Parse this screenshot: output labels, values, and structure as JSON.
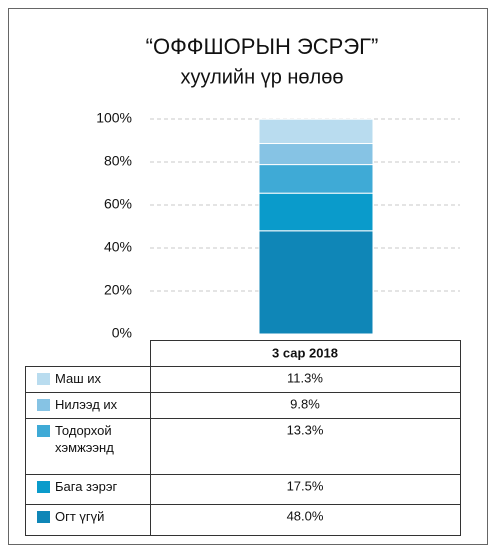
{
  "chart_data": {
    "type": "stacked_bar",
    "title": "“ОФФШОРЫН ЭСРЭГ”",
    "subtitle": "хуулийн үр нөлөө",
    "categories": [
      "3 сар 2018"
    ],
    "series": [
      {
        "name": "Маш их",
        "color": "#b9dcef",
        "values": [
          11.3
        ],
        "value_labels": [
          "11.3%"
        ]
      },
      {
        "name": "Нилээд их",
        "color": "#86c3e4",
        "values": [
          9.8
        ],
        "value_labels": [
          "9.8%"
        ]
      },
      {
        "name": "Тодорхой хэмжээнд",
        "color": "#3faad6",
        "values": [
          13.3
        ],
        "value_labels": [
          "13.3%"
        ]
      },
      {
        "name": "Бага зэрэг",
        "color": "#0a9bcb",
        "values": [
          17.5
        ],
        "value_labels": [
          "17.5%"
        ]
      },
      {
        "name": "Огт үгүй",
        "color": "#0f86b7",
        "values": [
          48.0
        ],
        "value_labels": [
          "48.0%"
        ]
      }
    ],
    "ylim": [
      0,
      100
    ],
    "yticks": [
      {
        "value": 0,
        "label": "0%"
      },
      {
        "value": 20,
        "label": "20%"
      },
      {
        "value": 40,
        "label": "40%"
      },
      {
        "value": 60,
        "label": "60%"
      },
      {
        "value": 80,
        "label": "80%"
      },
      {
        "value": 100,
        "label": "100%"
      }
    ],
    "grid": true
  }
}
